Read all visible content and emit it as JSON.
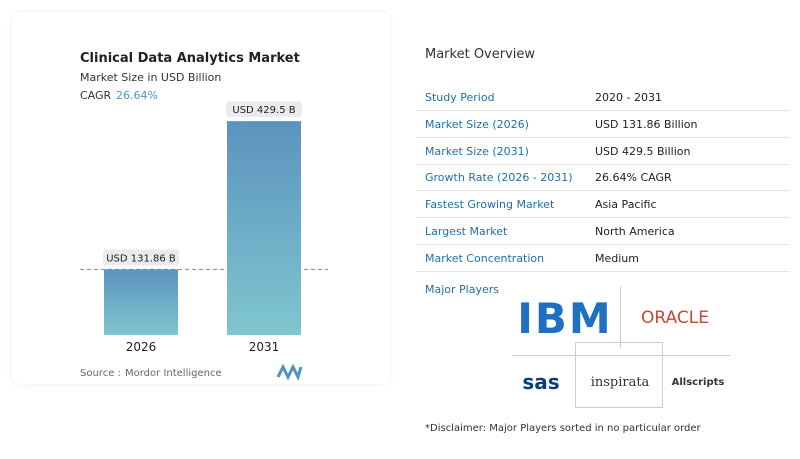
{
  "chart_data": {
    "type": "bar",
    "title": "Clinical Data Analytics Market",
    "subtitle": "Market Size in USD Billion",
    "cagr_label": "CAGR",
    "cagr_value": "26.64%",
    "categories": [
      "2026",
      "2031"
    ],
    "values": [
      131.86,
      429.5
    ],
    "value_labels": [
      "USD 131.86 B",
      "USD 429.5 B"
    ],
    "ylim": [
      0,
      470
    ],
    "colors": [
      "#5b93be",
      "#80c6d0"
    ],
    "source_label": "Source :",
    "source": "Mordor Intelligence"
  },
  "overview": {
    "title": "Market Overview",
    "rows": [
      [
        "Study Period",
        "2020 - 2031"
      ],
      [
        "Market Size (2026)",
        "USD 131.86 Billion"
      ],
      [
        "Market Size (2031)",
        "USD 429.5 Billion"
      ],
      [
        "Growth Rate (2026 - 2031)",
        "26.64% CAGR"
      ],
      [
        "Fastest Growing Market",
        "Asia Pacific"
      ],
      [
        "Largest Market",
        "North America"
      ],
      [
        "Market Concentration",
        "Medium"
      ]
    ],
    "players_title": "Major Players",
    "players": [
      "IBM",
      "ORACLE",
      "sas",
      "inspirata",
      "Allscripts"
    ],
    "disclaimer": "*Disclaimer: Major Players sorted in no particular order"
  }
}
